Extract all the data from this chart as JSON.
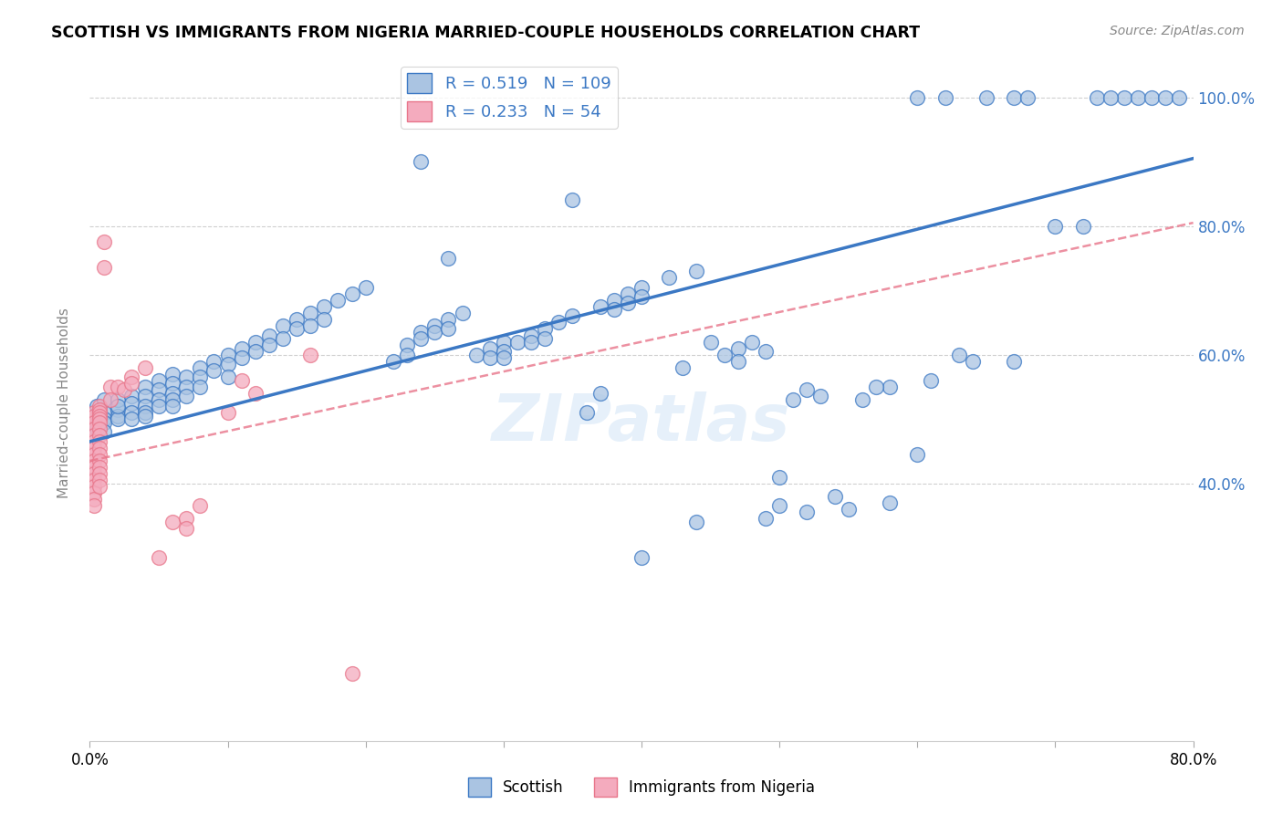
{
  "title": "SCOTTISH VS IMMIGRANTS FROM NIGERIA MARRIED-COUPLE HOUSEHOLDS CORRELATION CHART",
  "source": "Source: ZipAtlas.com",
  "ylabel": "Married-couple Households",
  "xlim": [
    0.0,
    0.8
  ],
  "ylim": [
    0.0,
    1.05
  ],
  "x_tick_positions": [
    0.0,
    0.1,
    0.2,
    0.3,
    0.4,
    0.5,
    0.6,
    0.7,
    0.8
  ],
  "x_tick_labels": [
    "0.0%",
    "",
    "",
    "",
    "",
    "",
    "",
    "",
    "80.0%"
  ],
  "y_tick_positions": [
    0.4,
    0.6,
    0.8,
    1.0
  ],
  "y_tick_labels": [
    "40.0%",
    "60.0%",
    "80.0%",
    "100.0%"
  ],
  "blue_R": "0.519",
  "blue_N": "109",
  "pink_R": "0.233",
  "pink_N": "54",
  "blue_color": "#aac4e2",
  "pink_color": "#f4abbe",
  "blue_line_color": "#3b78c4",
  "pink_line_color": "#e8758a",
  "watermark": "ZIPatlas",
  "blue_line_x0": 0.0,
  "blue_line_y0": 0.465,
  "blue_line_x1": 0.8,
  "blue_line_y1": 0.905,
  "pink_line_x0": 0.0,
  "pink_line_y0": 0.435,
  "pink_line_x1": 0.8,
  "pink_line_y1": 0.805,
  "blue_scatter": [
    [
      0.005,
      0.5
    ],
    [
      0.005,
      0.52
    ],
    [
      0.005,
      0.49
    ],
    [
      0.005,
      0.485
    ],
    [
      0.01,
      0.51
    ],
    [
      0.01,
      0.53
    ],
    [
      0.01,
      0.5
    ],
    [
      0.01,
      0.495
    ],
    [
      0.01,
      0.48
    ],
    [
      0.02,
      0.515
    ],
    [
      0.02,
      0.53
    ],
    [
      0.02,
      0.505
    ],
    [
      0.02,
      0.5
    ],
    [
      0.02,
      0.52
    ],
    [
      0.03,
      0.535
    ],
    [
      0.03,
      0.525
    ],
    [
      0.03,
      0.51
    ],
    [
      0.03,
      0.5
    ],
    [
      0.04,
      0.55
    ],
    [
      0.04,
      0.535
    ],
    [
      0.04,
      0.52
    ],
    [
      0.04,
      0.51
    ],
    [
      0.04,
      0.505
    ],
    [
      0.05,
      0.56
    ],
    [
      0.05,
      0.545
    ],
    [
      0.05,
      0.53
    ],
    [
      0.05,
      0.52
    ],
    [
      0.06,
      0.57
    ],
    [
      0.06,
      0.555
    ],
    [
      0.06,
      0.54
    ],
    [
      0.06,
      0.53
    ],
    [
      0.06,
      0.52
    ],
    [
      0.07,
      0.565
    ],
    [
      0.07,
      0.55
    ],
    [
      0.07,
      0.535
    ],
    [
      0.08,
      0.58
    ],
    [
      0.08,
      0.565
    ],
    [
      0.08,
      0.55
    ],
    [
      0.09,
      0.59
    ],
    [
      0.09,
      0.575
    ],
    [
      0.1,
      0.6
    ],
    [
      0.1,
      0.585
    ],
    [
      0.1,
      0.565
    ],
    [
      0.11,
      0.61
    ],
    [
      0.11,
      0.595
    ],
    [
      0.12,
      0.62
    ],
    [
      0.12,
      0.605
    ],
    [
      0.13,
      0.63
    ],
    [
      0.13,
      0.615
    ],
    [
      0.14,
      0.645
    ],
    [
      0.14,
      0.625
    ],
    [
      0.15,
      0.655
    ],
    [
      0.15,
      0.64
    ],
    [
      0.16,
      0.665
    ],
    [
      0.16,
      0.645
    ],
    [
      0.17,
      0.675
    ],
    [
      0.17,
      0.655
    ],
    [
      0.18,
      0.685
    ],
    [
      0.19,
      0.695
    ],
    [
      0.2,
      0.705
    ],
    [
      0.22,
      0.59
    ],
    [
      0.23,
      0.615
    ],
    [
      0.23,
      0.6
    ],
    [
      0.24,
      0.635
    ],
    [
      0.24,
      0.625
    ],
    [
      0.25,
      0.645
    ],
    [
      0.25,
      0.635
    ],
    [
      0.26,
      0.655
    ],
    [
      0.26,
      0.64
    ],
    [
      0.27,
      0.665
    ],
    [
      0.28,
      0.6
    ],
    [
      0.29,
      0.61
    ],
    [
      0.29,
      0.595
    ],
    [
      0.3,
      0.62
    ],
    [
      0.3,
      0.605
    ],
    [
      0.3,
      0.595
    ],
    [
      0.31,
      0.62
    ],
    [
      0.32,
      0.63
    ],
    [
      0.32,
      0.62
    ],
    [
      0.33,
      0.64
    ],
    [
      0.33,
      0.625
    ],
    [
      0.34,
      0.65
    ],
    [
      0.35,
      0.66
    ],
    [
      0.36,
      0.51
    ],
    [
      0.37,
      0.675
    ],
    [
      0.37,
      0.54
    ],
    [
      0.38,
      0.685
    ],
    [
      0.38,
      0.67
    ],
    [
      0.39,
      0.695
    ],
    [
      0.39,
      0.68
    ],
    [
      0.4,
      0.705
    ],
    [
      0.4,
      0.69
    ],
    [
      0.42,
      0.72
    ],
    [
      0.43,
      0.58
    ],
    [
      0.44,
      0.73
    ],
    [
      0.45,
      0.62
    ],
    [
      0.46,
      0.6
    ],
    [
      0.47,
      0.61
    ],
    [
      0.47,
      0.59
    ],
    [
      0.48,
      0.62
    ],
    [
      0.49,
      0.605
    ],
    [
      0.5,
      0.41
    ],
    [
      0.51,
      0.53
    ],
    [
      0.52,
      0.545
    ],
    [
      0.53,
      0.535
    ],
    [
      0.56,
      0.53
    ],
    [
      0.58,
      0.55
    ],
    [
      0.6,
      0.445
    ],
    [
      0.61,
      0.56
    ],
    [
      0.63,
      0.6
    ],
    [
      0.64,
      0.59
    ],
    [
      0.67,
      0.59
    ],
    [
      0.7,
      0.8
    ],
    [
      0.72,
      0.8
    ],
    [
      0.24,
      0.9
    ],
    [
      0.26,
      0.75
    ],
    [
      0.35,
      0.84
    ],
    [
      0.4,
      0.285
    ],
    [
      0.44,
      0.34
    ],
    [
      0.49,
      0.345
    ],
    [
      0.5,
      0.365
    ],
    [
      0.52,
      0.355
    ],
    [
      0.54,
      0.38
    ],
    [
      0.55,
      0.36
    ],
    [
      0.57,
      0.55
    ],
    [
      0.58,
      0.37
    ],
    [
      0.75,
      1.0
    ],
    [
      0.76,
      1.0
    ],
    [
      0.77,
      1.0
    ],
    [
      0.78,
      1.0
    ],
    [
      0.79,
      1.0
    ],
    [
      0.73,
      1.0
    ],
    [
      0.74,
      1.0
    ],
    [
      0.6,
      1.0
    ],
    [
      0.62,
      1.0
    ],
    [
      0.65,
      1.0
    ],
    [
      0.67,
      1.0
    ],
    [
      0.68,
      1.0
    ]
  ],
  "pink_scatter": [
    [
      0.003,
      0.5
    ],
    [
      0.003,
      0.51
    ],
    [
      0.003,
      0.505
    ],
    [
      0.003,
      0.495
    ],
    [
      0.003,
      0.485
    ],
    [
      0.003,
      0.475
    ],
    [
      0.003,
      0.465
    ],
    [
      0.003,
      0.455
    ],
    [
      0.003,
      0.445
    ],
    [
      0.003,
      0.435
    ],
    [
      0.003,
      0.425
    ],
    [
      0.003,
      0.415
    ],
    [
      0.003,
      0.405
    ],
    [
      0.003,
      0.395
    ],
    [
      0.003,
      0.385
    ],
    [
      0.003,
      0.375
    ],
    [
      0.003,
      0.365
    ],
    [
      0.007,
      0.52
    ],
    [
      0.007,
      0.515
    ],
    [
      0.007,
      0.51
    ],
    [
      0.007,
      0.505
    ],
    [
      0.007,
      0.5
    ],
    [
      0.007,
      0.495
    ],
    [
      0.007,
      0.485
    ],
    [
      0.007,
      0.475
    ],
    [
      0.007,
      0.465
    ],
    [
      0.007,
      0.455
    ],
    [
      0.007,
      0.445
    ],
    [
      0.007,
      0.435
    ],
    [
      0.007,
      0.425
    ],
    [
      0.007,
      0.415
    ],
    [
      0.007,
      0.405
    ],
    [
      0.007,
      0.395
    ],
    [
      0.01,
      0.775
    ],
    [
      0.01,
      0.735
    ],
    [
      0.015,
      0.55
    ],
    [
      0.015,
      0.53
    ],
    [
      0.02,
      0.55
    ],
    [
      0.025,
      0.545
    ],
    [
      0.03,
      0.565
    ],
    [
      0.03,
      0.555
    ],
    [
      0.04,
      0.58
    ],
    [
      0.05,
      0.285
    ],
    [
      0.06,
      0.34
    ],
    [
      0.07,
      0.345
    ],
    [
      0.07,
      0.33
    ],
    [
      0.08,
      0.365
    ],
    [
      0.1,
      0.51
    ],
    [
      0.11,
      0.56
    ],
    [
      0.12,
      0.54
    ],
    [
      0.16,
      0.6
    ],
    [
      0.19,
      0.105
    ]
  ],
  "figsize": [
    14.06,
    8.92
  ],
  "dpi": 100
}
